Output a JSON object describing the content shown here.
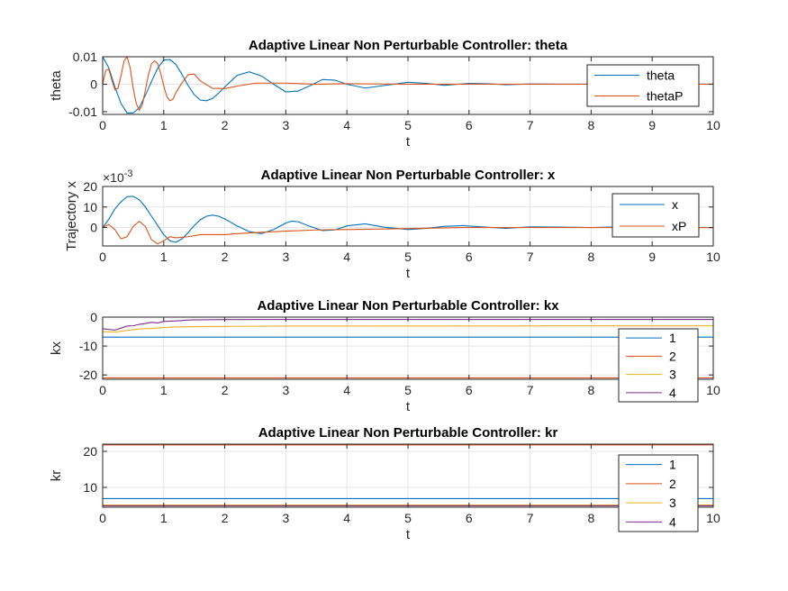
{
  "figure": {
    "background": "#ffffff",
    "axes_color": "#262626",
    "grid_color": "#e5e5e5"
  },
  "chart_data": [
    {
      "type": "line",
      "title": "Adaptive Linear Non Perturbable Controller: theta",
      "xlabel": "t",
      "ylabel": "theta",
      "xlim": [
        0,
        10
      ],
      "ylim": [
        -0.011,
        0.01
      ],
      "xticks": [
        0,
        1,
        2,
        3,
        4,
        5,
        6,
        7,
        8,
        9,
        10
      ],
      "xtick_labels": [
        "0",
        "1",
        "2",
        "3",
        "4",
        "5",
        "6",
        "7",
        "8",
        "9",
        "10"
      ],
      "yticks": [
        -0.01,
        0,
        0.01
      ],
      "ytick_labels": [
        "-0.01",
        "0",
        "0.01"
      ],
      "exponent_label": "",
      "grid": true,
      "legend_position": "top-right",
      "series": [
        {
          "name": "theta",
          "color": "#0072bd",
          "x": [
            0,
            0.1,
            0.2,
            0.3,
            0.4,
            0.5,
            0.6,
            0.7,
            0.8,
            0.9,
            1.0,
            1.1,
            1.2,
            1.3,
            1.4,
            1.5,
            1.6,
            1.7,
            1.8,
            1.9,
            2.0,
            2.2,
            2.4,
            2.6,
            2.8,
            3.0,
            3.2,
            3.4,
            3.6,
            3.8,
            4.0,
            4.3,
            4.6,
            5.0,
            5.3,
            5.6,
            6.0,
            6.3,
            6.6,
            7.0,
            7.5,
            8.0,
            9.0,
            10.0
          ],
          "y": [
            0.01,
            0.006,
            -0.001,
            -0.007,
            -0.0105,
            -0.0105,
            -0.0085,
            -0.004,
            0.001,
            0.0058,
            0.0088,
            0.009,
            0.0072,
            0.0035,
            -0.0005,
            -0.0038,
            -0.0058,
            -0.006,
            -0.0052,
            -0.0032,
            -0.001,
            0.0032,
            0.0045,
            0.003,
            0.0,
            -0.0028,
            -0.0025,
            -0.0005,
            0.0017,
            0.0015,
            0.0,
            -0.0014,
            -0.0005,
            0.0007,
            0.0003,
            -0.0004,
            0.0003,
            0.0002,
            -0.0002,
            0.0001,
            0.0,
            0.0,
            0.0,
            0.0
          ]
        },
        {
          "name": "thetaP",
          "color": "#d95319",
          "x": [
            0,
            0.05,
            0.1,
            0.15,
            0.2,
            0.25,
            0.3,
            0.35,
            0.4,
            0.45,
            0.5,
            0.55,
            0.6,
            0.65,
            0.7,
            0.75,
            0.8,
            0.85,
            0.9,
            0.95,
            1.0,
            1.05,
            1.1,
            1.15,
            1.2,
            1.3,
            1.4,
            1.5,
            1.6,
            1.8,
            2.0,
            2.2,
            2.5,
            3.0,
            3.5,
            4.0,
            5.0,
            6.0,
            7.0,
            8.0,
            9.0,
            10.0
          ],
          "y": [
            0.0,
            0.005,
            0.0055,
            0.0015,
            -0.002,
            -0.0015,
            0.003,
            0.0085,
            0.01,
            0.006,
            -0.0015,
            -0.007,
            -0.0095,
            -0.0075,
            -0.002,
            0.0035,
            0.0075,
            0.0085,
            0.0075,
            0.004,
            -0.0005,
            -0.0045,
            -0.006,
            -0.0055,
            -0.003,
            0.0005,
            0.0035,
            0.0037,
            0.0012,
            -0.0015,
            -0.0016,
            -0.0007,
            0.0004,
            0.0004,
            0.0,
            0.0002,
            0.0,
            0.0,
            0.0,
            0.0,
            0.0,
            0.0
          ]
        }
      ]
    },
    {
      "type": "line",
      "title": "Adaptive Linear Non Perturbable Controller: x",
      "xlabel": "t",
      "ylabel": "Trajectory x",
      "xlim": [
        0,
        10
      ],
      "ylim": [
        -0.009,
        0.02
      ],
      "xticks": [
        0,
        1,
        2,
        3,
        4,
        5,
        6,
        7,
        8,
        9,
        10
      ],
      "xtick_labels": [
        "0",
        "1",
        "2",
        "3",
        "4",
        "5",
        "6",
        "7",
        "8",
        "9",
        "10"
      ],
      "yticks": [
        0,
        0.01,
        0.02
      ],
      "ytick_labels": [
        "0",
        "10",
        "20"
      ],
      "exponent_label": "×10",
      "exponent_power": "-3",
      "grid": true,
      "legend_position": "top-right",
      "series": [
        {
          "name": "x",
          "color": "#0072bd",
          "x": [
            0,
            0.1,
            0.2,
            0.3,
            0.4,
            0.5,
            0.6,
            0.7,
            0.8,
            0.9,
            1.0,
            1.1,
            1.2,
            1.3,
            1.4,
            1.5,
            1.6,
            1.7,
            1.8,
            1.9,
            2.0,
            2.1,
            2.2,
            2.4,
            2.6,
            2.8,
            3.0,
            3.1,
            3.2,
            3.4,
            3.6,
            3.8,
            4.0,
            4.3,
            4.6,
            5.0,
            5.3,
            5.6,
            5.9,
            6.2,
            6.6,
            7.0,
            7.5,
            8.0,
            8.5,
            9.0,
            9.5,
            10.0
          ],
          "y": [
            0.0,
            0.004,
            0.009,
            0.0125,
            0.015,
            0.0152,
            0.0135,
            0.01,
            0.0055,
            0.001,
            -0.0035,
            -0.0065,
            -0.0072,
            -0.0055,
            -0.0025,
            0.001,
            0.0038,
            0.0055,
            0.006,
            0.0055,
            0.0042,
            0.0025,
            0.0008,
            -0.002,
            -0.003,
            -0.001,
            0.0022,
            0.0031,
            0.0028,
            0.0005,
            -0.0015,
            -0.0012,
            0.0008,
            0.0018,
            0.0002,
            -0.001,
            -0.0004,
            0.0006,
            0.0009,
            0.0003,
            -0.0004,
            0.0003,
            0.0002,
            0.0,
            0.0003,
            0.0001,
            0.0,
            0.0
          ]
        },
        {
          "name": "xP",
          "color": "#d95319",
          "x": [
            0,
            0.1,
            0.2,
            0.3,
            0.4,
            0.5,
            0.6,
            0.7,
            0.8,
            0.9,
            1.0,
            1.1,
            1.2,
            1.4,
            1.6,
            1.8,
            2.0,
            2.2,
            2.5,
            3.0,
            3.5,
            4.0,
            5.0,
            6.0,
            7.0,
            8.0,
            9.0,
            10.0
          ],
          "y": [
            0.0,
            0.0015,
            -0.001,
            -0.0055,
            -0.0045,
            0.0005,
            0.003,
            0.0005,
            -0.006,
            -0.008,
            -0.0065,
            -0.0045,
            -0.005,
            -0.0045,
            -0.0035,
            -0.0035,
            -0.0035,
            -0.003,
            -0.0025,
            -0.0018,
            -0.0012,
            -0.001,
            -0.0005,
            0.0,
            0.0,
            0.0,
            0.0,
            0.0
          ]
        }
      ]
    },
    {
      "type": "line",
      "title": "Adaptive Linear Non Perturbable Controller: kx",
      "xlabel": "t",
      "ylabel": "kx",
      "xlim": [
        0,
        10
      ],
      "ylim": [
        -21.5,
        0
      ],
      "xticks": [
        0,
        1,
        2,
        3,
        4,
        5,
        6,
        7,
        8,
        9,
        10
      ],
      "xtick_labels": [
        "0",
        "1",
        "2",
        "3",
        "4",
        "5",
        "6",
        "7",
        "8",
        "9",
        "10"
      ],
      "yticks": [
        -20,
        -10,
        0
      ],
      "ytick_labels": [
        "-20",
        "-10",
        "0"
      ],
      "exponent_label": "",
      "grid": true,
      "legend_position": "top-right",
      "series": [
        {
          "name": "1",
          "color": "#0072bd",
          "x": [
            0,
            10
          ],
          "y": [
            -6.9,
            -6.9
          ]
        },
        {
          "name": "2",
          "color": "#d95319",
          "x": [
            0,
            10
          ],
          "y": [
            -21.0,
            -21.0
          ]
        },
        {
          "name": "3",
          "color": "#edb120",
          "x": [
            0,
            0.2,
            0.4,
            0.6,
            0.8,
            1.0,
            1.2,
            1.5,
            2.0,
            3.0,
            10.0
          ],
          "y": [
            -5.0,
            -5.2,
            -4.6,
            -4.1,
            -3.9,
            -3.6,
            -3.4,
            -3.3,
            -3.2,
            -3.1,
            -3.0
          ]
        },
        {
          "name": "4",
          "color": "#7e2f8e",
          "x": [
            0,
            0.2,
            0.3,
            0.4,
            0.5,
            0.6,
            0.7,
            0.8,
            0.9,
            1.0,
            1.2,
            1.4,
            1.6,
            2.0,
            3.0,
            10.0
          ],
          "y": [
            -4.0,
            -4.5,
            -3.8,
            -3.1,
            -3.0,
            -2.5,
            -2.2,
            -1.8,
            -2.0,
            -1.5,
            -1.3,
            -1.0,
            -0.9,
            -0.85,
            -0.8,
            -0.8
          ]
        }
      ]
    },
    {
      "type": "line",
      "title": "Adaptive Linear Non Perturbable Controller: kr",
      "xlabel": "t",
      "ylabel": "kr",
      "xlim": [
        0,
        10
      ],
      "ylim": [
        4.5,
        22
      ],
      "xticks": [
        0,
        1,
        2,
        3,
        4,
        5,
        6,
        7,
        8,
        9,
        10
      ],
      "xtick_labels": [
        "0",
        "1",
        "2",
        "3",
        "4",
        "5",
        "6",
        "7",
        "8",
        "9",
        "10"
      ],
      "yticks": [
        10,
        20
      ],
      "ytick_labels": [
        "10",
        "20"
      ],
      "exponent_label": "",
      "grid": true,
      "legend_position": "top-right",
      "series": [
        {
          "name": "1",
          "color": "#0072bd",
          "x": [
            0,
            10
          ],
          "y": [
            6.9,
            6.9
          ]
        },
        {
          "name": "2",
          "color": "#d95319",
          "x": [
            0,
            10
          ],
          "y": [
            21.8,
            21.8
          ]
        },
        {
          "name": "3",
          "color": "#edb120",
          "x": [
            0,
            10
          ],
          "y": [
            5.1,
            5.1
          ]
        },
        {
          "name": "4",
          "color": "#7e2f8e",
          "x": [
            0,
            10
          ],
          "y": [
            4.9,
            4.9
          ]
        }
      ]
    }
  ]
}
